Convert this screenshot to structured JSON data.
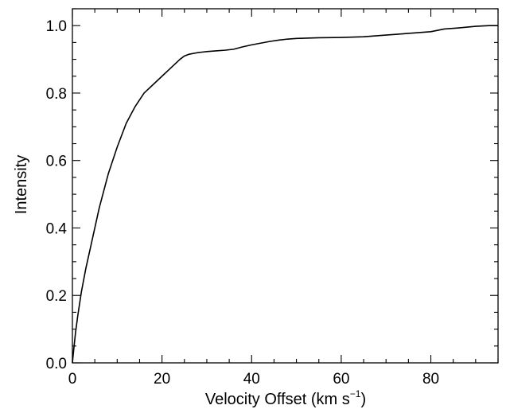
{
  "chart_data": {
    "type": "line",
    "xlabel": "Velocity Offset (km s",
    "xlabel_sup": "−1",
    "xlabel_tail": ")",
    "ylabel": "Intensity",
    "xlim": [
      0,
      95
    ],
    "ylim": [
      0.0,
      1.05
    ],
    "x_ticks": [
      0,
      20,
      40,
      60,
      80
    ],
    "x_tick_labels": [
      "0",
      "20",
      "40",
      "60",
      "80"
    ],
    "y_ticks": [
      0.0,
      0.2,
      0.4,
      0.6,
      0.8,
      1.0
    ],
    "y_tick_labels": [
      "0.0",
      "0.2",
      "0.4",
      "0.6",
      "0.8",
      "1.0"
    ],
    "x_minor_step": 5,
    "y_minor_step": 0.05,
    "grid": false,
    "series": [
      {
        "color": "#000000",
        "x": [
          0,
          0.3,
          0.7,
          1.2,
          2,
          3,
          4,
          5,
          6,
          8,
          10,
          12,
          14,
          16,
          18,
          20,
          22,
          24,
          25,
          26,
          28,
          30,
          32,
          34,
          36,
          38,
          40,
          42,
          44,
          46,
          48,
          50,
          55,
          60,
          65,
          70,
          75,
          80,
          83,
          86,
          90,
          93,
          95
        ],
        "y": [
          0.0,
          0.04,
          0.09,
          0.14,
          0.21,
          0.28,
          0.34,
          0.4,
          0.46,
          0.56,
          0.64,
          0.71,
          0.76,
          0.8,
          0.825,
          0.85,
          0.875,
          0.9,
          0.91,
          0.915,
          0.92,
          0.923,
          0.925,
          0.927,
          0.93,
          0.937,
          0.943,
          0.948,
          0.953,
          0.957,
          0.96,
          0.962,
          0.964,
          0.965,
          0.967,
          0.972,
          0.977,
          0.982,
          0.99,
          0.993,
          0.998,
          1.0,
          1.0
        ]
      }
    ]
  }
}
